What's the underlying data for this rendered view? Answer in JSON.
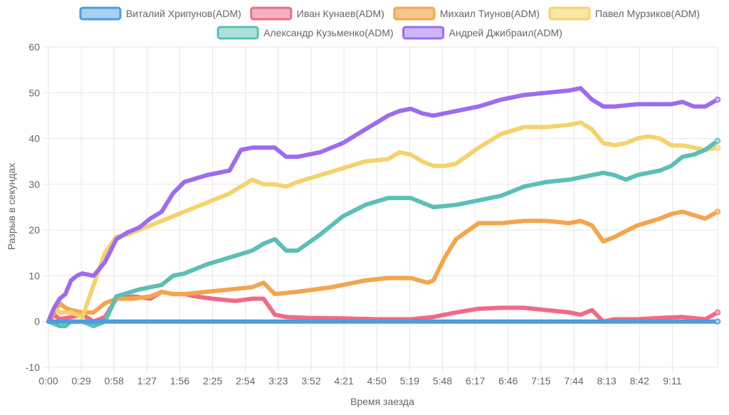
{
  "chart_data": {
    "type": "line",
    "xlabel": "Время заезда",
    "ylabel": "Разрыв в секундах",
    "xlim": [
      0,
      591
    ],
    "ylim": [
      -10,
      60
    ],
    "x_ticks": [
      0,
      29,
      58,
      87,
      116,
      145,
      174,
      203,
      232,
      261,
      290,
      319,
      348,
      377,
      406,
      435,
      464,
      493,
      522,
      551
    ],
    "x_tick_labels": [
      "0:00",
      "0:29",
      "0:58",
      "1:27",
      "1:56",
      "2:25",
      "2:54",
      "3:23",
      "3:52",
      "4:21",
      "4:50",
      "5:19",
      "5:48",
      "6:17",
      "6:46",
      "7:15",
      "7:44",
      "8:13",
      "8:42",
      "9:11"
    ],
    "y_ticks": [
      -10,
      0,
      10,
      20,
      30,
      40,
      50,
      60
    ],
    "grid": true,
    "legend_position": "top",
    "series": [
      {
        "name": "Виталий Хрипунов(ADM)",
        "color": "#4a9de0",
        "fill": "#a9cff2",
        "x": [
          0,
          591
        ],
        "y": [
          0,
          0
        ]
      },
      {
        "name": "Иван Кунаев(ADM)",
        "color": "#f06a86",
        "fill": "#f7b1c0",
        "x": [
          0,
          5,
          10,
          20,
          30,
          40,
          50,
          60,
          75,
          90,
          100,
          110,
          120,
          130,
          145,
          165,
          180,
          190,
          200,
          210,
          230,
          260,
          290,
          320,
          340,
          360,
          380,
          400,
          420,
          440,
          460,
          470,
          480,
          490,
          500,
          520,
          540,
          560,
          580,
          591
        ],
        "y": [
          0,
          1.5,
          0.5,
          1,
          1.5,
          0,
          1,
          5,
          5.5,
          5,
          6.5,
          6,
          6,
          5.5,
          5,
          4.5,
          5,
          5,
          1.5,
          1,
          0.8,
          0.7,
          0.5,
          0.5,
          1,
          2,
          2.8,
          3,
          3,
          2.5,
          2,
          1.5,
          2.5,
          0,
          0.5,
          0.5,
          0.8,
          1,
          0.5,
          2
        ]
      },
      {
        "name": "Михаил Тиунов(ADM)",
        "color": "#f4a54c",
        "fill": "#f8c58c",
        "x": [
          0,
          5,
          10,
          15,
          20,
          30,
          40,
          50,
          60,
          75,
          90,
          100,
          110,
          120,
          140,
          160,
          180,
          190,
          200,
          220,
          250,
          280,
          300,
          320,
          335,
          340,
          350,
          360,
          380,
          400,
          420,
          440,
          460,
          470,
          480,
          490,
          500,
          520,
          540,
          550,
          560,
          580,
          591
        ],
        "y": [
          0,
          2,
          4,
          3,
          2.5,
          2,
          2,
          4,
          5,
          5,
          5.5,
          6.5,
          6,
          6,
          6.5,
          7,
          7.5,
          8.5,
          6,
          6.5,
          7.5,
          9,
          9.5,
          9.5,
          8.5,
          9,
          14,
          18,
          21.5,
          21.5,
          22,
          22,
          21.5,
          22,
          21,
          17.5,
          18.5,
          21,
          22.5,
          23.5,
          24,
          22.5,
          24
        ]
      },
      {
        "name": "Павел Мурзиков(ADM)",
        "color": "#f5d36a",
        "fill": "#fbe6a8",
        "x": [
          0,
          5,
          10,
          20,
          30,
          40,
          50,
          60,
          70,
          80,
          90,
          100,
          120,
          140,
          160,
          180,
          190,
          200,
          210,
          220,
          240,
          260,
          280,
          300,
          310,
          320,
          330,
          340,
          350,
          360,
          380,
          400,
          420,
          440,
          460,
          470,
          480,
          490,
          500,
          510,
          520,
          530,
          540,
          550,
          560,
          570,
          580,
          591
        ],
        "y": [
          0,
          3,
          2,
          2,
          1,
          8,
          15,
          18.5,
          19,
          20,
          21,
          22,
          24,
          26,
          28,
          31,
          30,
          30,
          29.5,
          30.5,
          32,
          33.5,
          35,
          35.5,
          37,
          36.5,
          35,
          34,
          34,
          34.5,
          38,
          41,
          42.5,
          42.5,
          43,
          43.5,
          42,
          39,
          38.5,
          39,
          40,
          40.5,
          40,
          38.5,
          38.5,
          38,
          37.5,
          38
        ]
      },
      {
        "name": "Александр Кузьменко(ADM)",
        "color": "#5bbfb5",
        "fill": "#b0e0dc",
        "x": [
          0,
          5,
          10,
          15,
          20,
          30,
          40,
          50,
          60,
          80,
          100,
          110,
          120,
          140,
          160,
          180,
          190,
          200,
          210,
          220,
          240,
          260,
          280,
          300,
          320,
          330,
          340,
          360,
          380,
          400,
          420,
          440,
          460,
          480,
          490,
          500,
          510,
          520,
          540,
          550,
          560,
          570,
          580,
          591
        ],
        "y": [
          0,
          -0.5,
          -1,
          -1,
          0,
          0,
          -1,
          0,
          5.5,
          7,
          8,
          10,
          10.5,
          12.5,
          14,
          15.5,
          17,
          18,
          15.5,
          15.5,
          19,
          23,
          25.5,
          27,
          27,
          26,
          25,
          25.5,
          26.5,
          27.5,
          29.5,
          30.5,
          31,
          32,
          32.5,
          32,
          31,
          32,
          33,
          34,
          36,
          36.5,
          37.5,
          39.5
        ]
      },
      {
        "name": "Андрей Джибраил(ADM)",
        "color": "#9c6cef",
        "fill": "#cdb6f7",
        "x": [
          0,
          5,
          10,
          15,
          20,
          25,
          30,
          40,
          50,
          60,
          70,
          80,
          90,
          100,
          110,
          120,
          140,
          160,
          170,
          180,
          190,
          200,
          210,
          220,
          240,
          260,
          280,
          300,
          310,
          320,
          330,
          340,
          360,
          380,
          400,
          420,
          440,
          460,
          470,
          480,
          490,
          500,
          520,
          540,
          550,
          560,
          570,
          580,
          591
        ],
        "y": [
          0,
          3,
          5,
          6,
          9,
          10,
          10.5,
          10,
          13,
          18,
          19.5,
          20.5,
          22.5,
          24,
          28,
          30.5,
          32,
          33,
          37.5,
          38,
          38,
          38,
          36,
          36,
          37,
          39,
          42,
          45,
          46,
          46.5,
          45.5,
          45,
          46,
          47,
          48.5,
          49.5,
          50,
          50.5,
          51,
          48.5,
          47,
          47,
          47.5,
          47.5,
          47.5,
          48,
          47,
          47,
          48.5
        ]
      }
    ]
  }
}
